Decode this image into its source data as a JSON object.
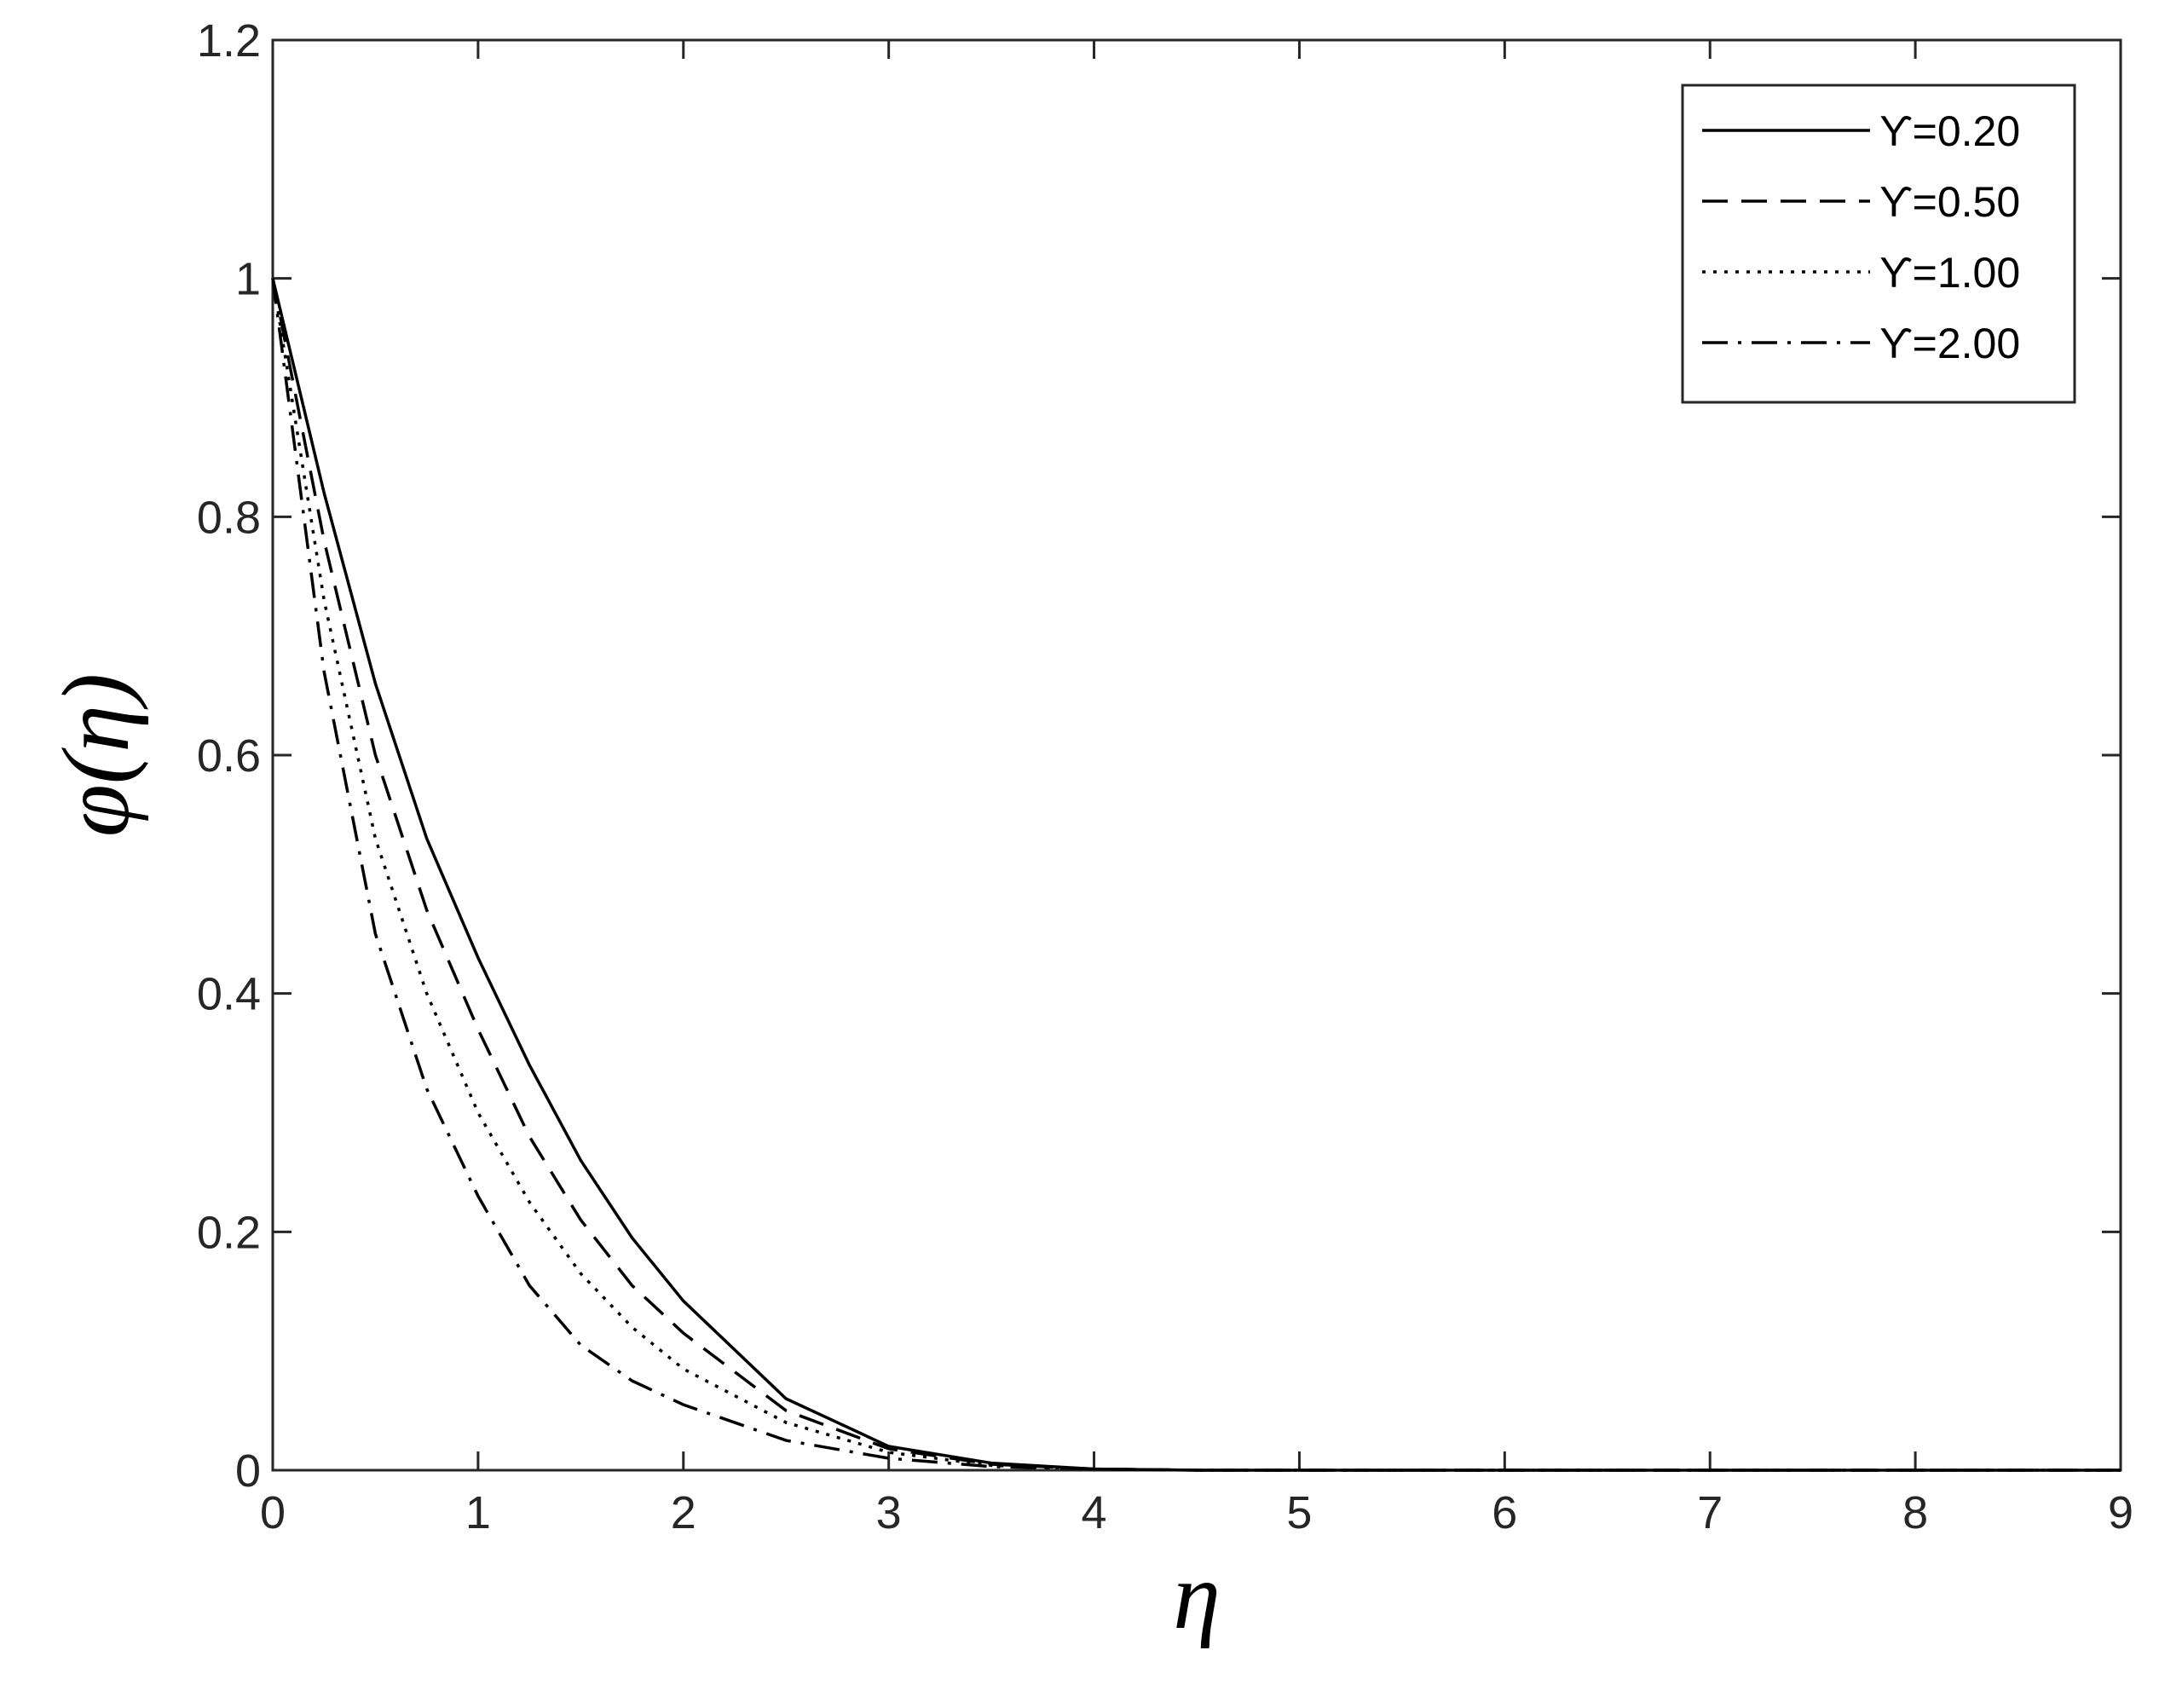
{
  "chart_data": {
    "type": "line",
    "xlabel": "η",
    "ylabel": "φ(η)",
    "x": [
      0,
      0.25,
      0.5,
      0.75,
      1,
      1.25,
      1.5,
      1.75,
      2,
      2.5,
      3,
      3.5,
      4,
      4.5,
      9
    ],
    "series": [
      {
        "name": "ϒ=0.20",
        "color": "#000000",
        "linestyle": "solid",
        "values": [
          1,
          0.82,
          0.66,
          0.53,
          0.43,
          0.34,
          0.26,
          0.195,
          0.142,
          0.06,
          0.02,
          0.006,
          0.001,
          0,
          0
        ]
      },
      {
        "name": "ϒ=0.50",
        "color": "#000000",
        "linestyle": "dashed",
        "values": [
          1,
          0.78,
          0.6,
          0.47,
          0.37,
          0.28,
          0.21,
          0.155,
          0.115,
          0.05,
          0.018,
          0.005,
          0.001,
          0,
          0
        ]
      },
      {
        "name": "ϒ=1.00",
        "color": "#000000",
        "linestyle": "dotted",
        "values": [
          1,
          0.73,
          0.53,
          0.4,
          0.3,
          0.225,
          0.165,
          0.12,
          0.085,
          0.04,
          0.015,
          0.004,
          0.001,
          0,
          0
        ]
      },
      {
        "name": "ϒ=2.00",
        "color": "#000000",
        "linestyle": "dashdot",
        "values": [
          1,
          0.67,
          0.45,
          0.32,
          0.23,
          0.155,
          0.105,
          0.075,
          0.055,
          0.025,
          0.01,
          0.003,
          0.001,
          0,
          0
        ]
      }
    ],
    "xlim": [
      0,
      9
    ],
    "xticks": [
      0,
      1,
      2,
      3,
      4,
      5,
      6,
      7,
      8,
      9
    ],
    "ylim": [
      0,
      1.2
    ],
    "yticks": [
      0,
      0.2,
      0.4,
      0.6,
      0.8,
      1,
      1.2
    ],
    "grid": false,
    "legend": "upper right"
  }
}
